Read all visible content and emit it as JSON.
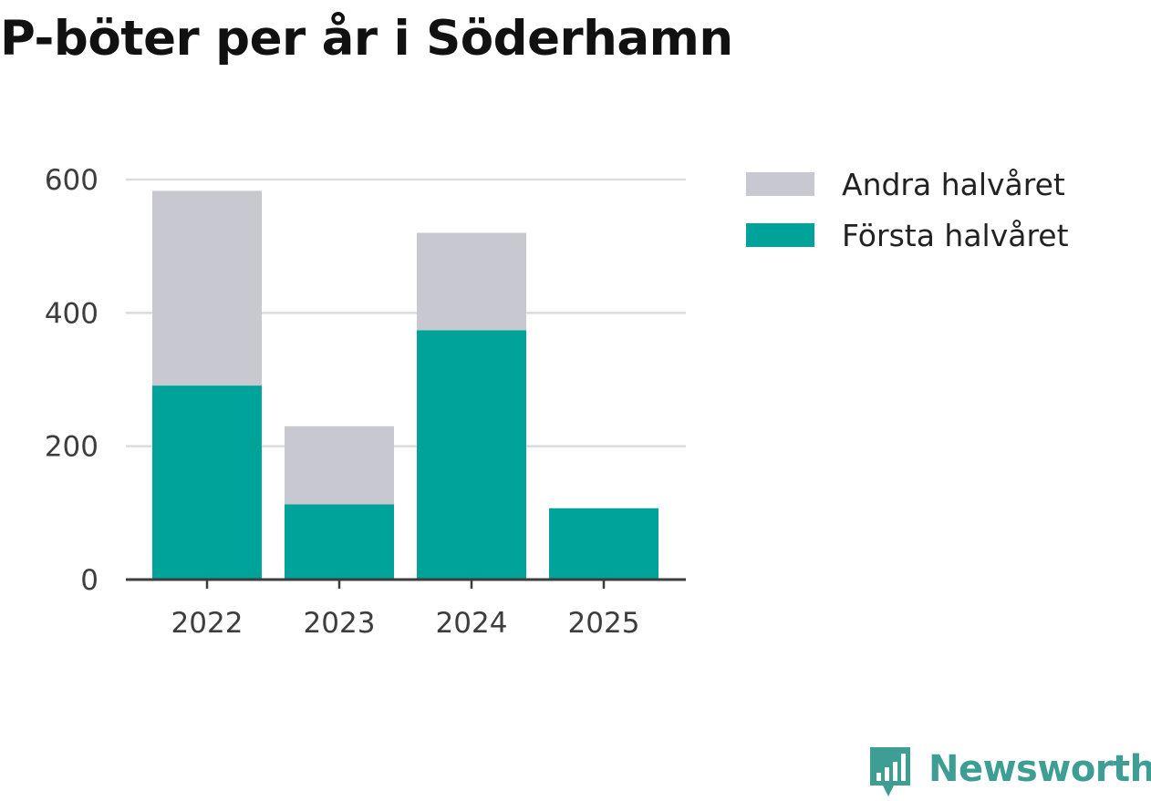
{
  "chart_data": {
    "type": "bar",
    "stacked": true,
    "title": "P-böter per år i Söderhamn",
    "xlabel": "",
    "ylabel": "",
    "categories": [
      "2022",
      "2023",
      "2024",
      "2025"
    ],
    "series": [
      {
        "name": "Första halvåret",
        "color": "#00a39a",
        "values": [
          291,
          113,
          374,
          107
        ]
      },
      {
        "name": "Andra halvåret",
        "color": "#c8c8d0",
        "values": [
          292,
          117,
          146,
          0
        ]
      }
    ],
    "legend_order": [
      "Andra halvåret",
      "Första halvåret"
    ],
    "legend_position": "top-right",
    "ylim": [
      0,
      600
    ],
    "yticks": [
      0,
      200,
      400,
      600
    ],
    "ytick_labels": [
      "0",
      "200",
      "400",
      "600"
    ],
    "grid": true
  },
  "brand": {
    "name": "Newsworthy",
    "color": "#3e9e94"
  }
}
